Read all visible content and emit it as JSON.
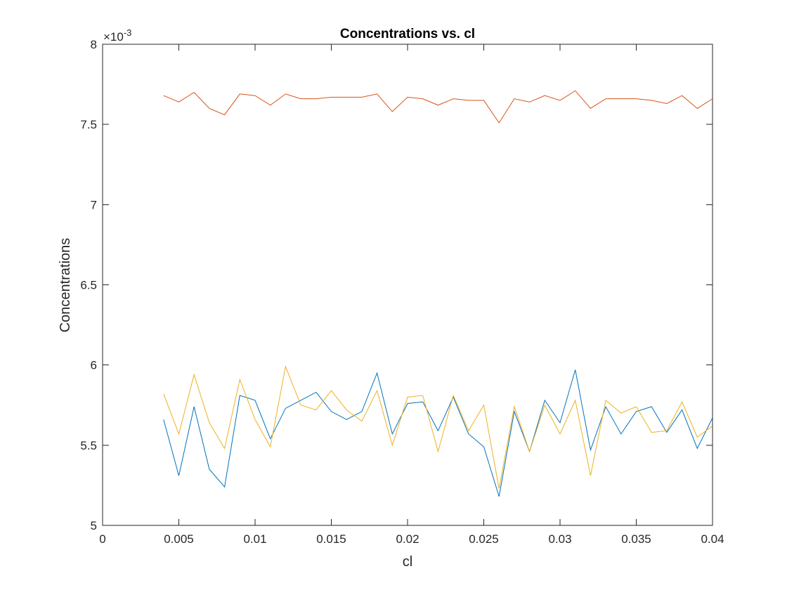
{
  "chart_data": {
    "type": "line",
    "title": "Concentrations vs. cl",
    "xlabel": "cl",
    "ylabel": "Concentrations",
    "xlim": [
      0,
      0.04
    ],
    "ylim": [
      5,
      8
    ],
    "y_exponent_label": "×10",
    "y_exponent_power": "-3",
    "y_scale_factor": 0.001,
    "x_ticks": [
      0,
      0.005,
      0.01,
      0.015,
      0.02,
      0.025,
      0.03,
      0.035,
      0.04
    ],
    "x_tick_labels": [
      "0",
      "0.005",
      "0.01",
      "0.015",
      "0.02",
      "0.025",
      "0.03",
      "0.035",
      "0.04"
    ],
    "y_ticks": [
      5,
      5.5,
      6,
      6.5,
      7,
      7.5,
      8
    ],
    "y_tick_labels": [
      "5",
      "5.5",
      "6",
      "6.5",
      "7",
      "7.5",
      "8"
    ],
    "grid": false,
    "legend": "none",
    "x": [
      0.004,
      0.005,
      0.006,
      0.007,
      0.008,
      0.009,
      0.01,
      0.011,
      0.012,
      0.013,
      0.014,
      0.015,
      0.016,
      0.017,
      0.018,
      0.019,
      0.02,
      0.021,
      0.022,
      0.023,
      0.024,
      0.025,
      0.026,
      0.027,
      0.028,
      0.029,
      0.03,
      0.031,
      0.032,
      0.033,
      0.034,
      0.035,
      0.036,
      0.037,
      0.038,
      0.039,
      0.04
    ],
    "series": [
      {
        "color": "#0072BD",
        "values": [
          5.66,
          5.31,
          5.74,
          5.35,
          5.24,
          5.81,
          5.78,
          5.54,
          5.73,
          5.78,
          5.83,
          5.71,
          5.66,
          5.71,
          5.95,
          5.57,
          5.76,
          5.77,
          5.59,
          5.8,
          5.57,
          5.49,
          5.18,
          5.71,
          5.46,
          5.78,
          5.64,
          5.97,
          5.47,
          5.74,
          5.57,
          5.71,
          5.74,
          5.58,
          5.72,
          5.48,
          5.67
        ]
      },
      {
        "color": "#D95319",
        "values": [
          7.68,
          7.64,
          7.7,
          7.6,
          7.56,
          7.69,
          7.68,
          7.62,
          7.69,
          7.66,
          7.66,
          7.67,
          7.67,
          7.67,
          7.69,
          7.58,
          7.67,
          7.66,
          7.62,
          7.66,
          7.65,
          7.65,
          7.51,
          7.66,
          7.64,
          7.68,
          7.65,
          7.71,
          7.6,
          7.66,
          7.66,
          7.66,
          7.65,
          7.63,
          7.68,
          7.6,
          7.66
        ]
      },
      {
        "color": "#EDB120",
        "values": [
          5.82,
          5.57,
          5.94,
          5.64,
          5.48,
          5.91,
          5.66,
          5.49,
          5.99,
          5.75,
          5.72,
          5.84,
          5.72,
          5.65,
          5.84,
          5.5,
          5.8,
          5.81,
          5.46,
          5.81,
          5.59,
          5.75,
          5.23,
          5.74,
          5.46,
          5.75,
          5.57,
          5.78,
          5.31,
          5.78,
          5.7,
          5.74,
          5.58,
          5.59,
          5.77,
          5.55,
          5.62
        ]
      }
    ]
  }
}
